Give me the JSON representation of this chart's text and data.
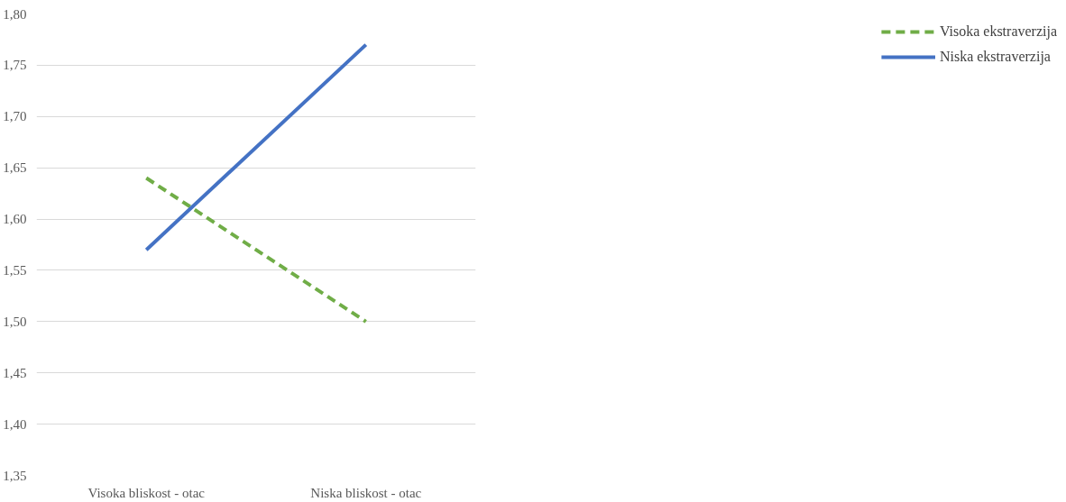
{
  "chart_data": {
    "type": "line",
    "categories": [
      "Visoka bliskost - otac",
      "Niska bliskost - otac"
    ],
    "series": [
      {
        "name": "Visoka ekstraverzija",
        "color": "#70ad47",
        "values": [
          1.64,
          1.5
        ],
        "line_style": "dashed"
      },
      {
        "name": "Niska ekstraverzija",
        "color": "#4472c4",
        "values": [
          1.57,
          1.77
        ],
        "line_style": "solid"
      }
    ],
    "ylim": [
      1.35,
      1.8
    ],
    "yticks": [
      {
        "value": 1.35,
        "label": "1,35"
      },
      {
        "value": 1.4,
        "label": "1,40"
      },
      {
        "value": 1.45,
        "label": "1,45"
      },
      {
        "value": 1.5,
        "label": "1,50"
      },
      {
        "value": 1.55,
        "label": "1,55"
      },
      {
        "value": 1.6,
        "label": "1,60"
      },
      {
        "value": 1.65,
        "label": "1,65"
      },
      {
        "value": 1.7,
        "label": "1,70"
      },
      {
        "value": 1.75,
        "label": "1,75"
      },
      {
        "value": 1.8,
        "label": "1,80"
      }
    ],
    "grid": "y",
    "legend": "right",
    "marker": "none"
  }
}
